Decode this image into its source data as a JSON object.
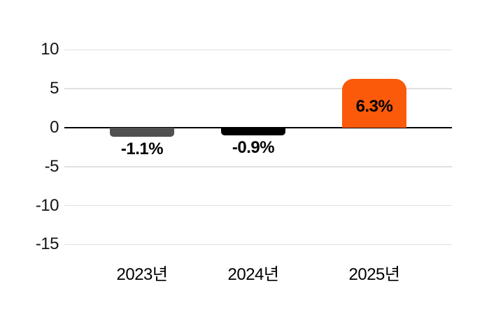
{
  "chart_data": {
    "type": "bar",
    "categories": [
      "2023년",
      "2024년",
      "2025년"
    ],
    "values": [
      -1.1,
      -0.9,
      6.3
    ],
    "value_labels": [
      "-1.1%",
      "-0.9%",
      "6.3%"
    ],
    "bar_colors": [
      "#515151",
      "#000000",
      "#FB5A0A"
    ],
    "value_label_color": "#000000",
    "yticks": [
      10,
      5,
      0,
      -5,
      -10,
      -15
    ],
    "ylim": [
      -17.5,
      12.5
    ],
    "grid": true,
    "legend_position": "none",
    "gridline_color": "#e0e0e0",
    "zero_line_color": "#000000",
    "y_axis_text_color": "#141414",
    "x_axis_text_color": "#000000",
    "background_color": "#ffffff"
  }
}
